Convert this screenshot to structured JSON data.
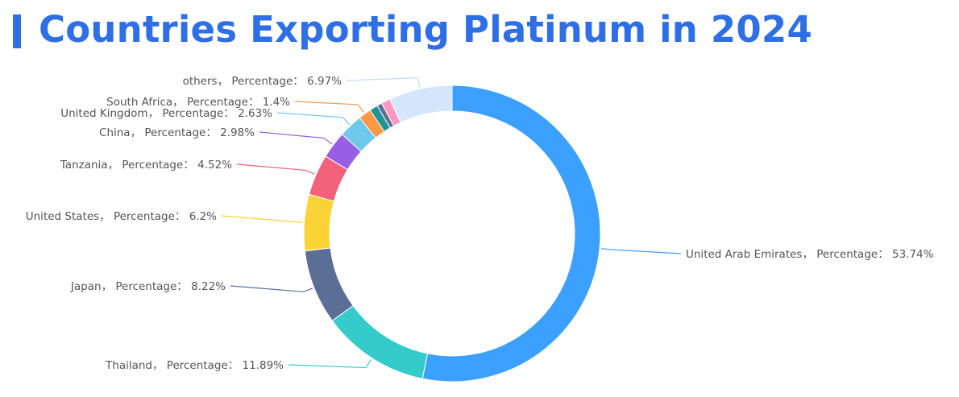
{
  "chart_data": {
    "type": "pie",
    "variant": "donut",
    "title": "Countries Exporting Platinum in 2024",
    "label_field": "Percentage",
    "unit": "%",
    "slices": [
      {
        "name": "United Arab Emirates",
        "value": 53.74,
        "color": "#3ba0ff"
      },
      {
        "name": "Thailand",
        "value": 11.89,
        "color": "#36cbcb"
      },
      {
        "name": "Japan",
        "value": 8.22,
        "color": "#5b6e96"
      },
      {
        "name": "United States",
        "value": 6.2,
        "color": "#fad337"
      },
      {
        "name": "Tanzania",
        "value": 4.52,
        "color": "#f2637b"
      },
      {
        "name": "China",
        "value": 2.98,
        "color": "#975fe4"
      },
      {
        "name": "United Kingdom",
        "value": 2.63,
        "color": "#6dc8ec"
      },
      {
        "name": "South Africa",
        "value": 1.4,
        "color": "#ff9845"
      },
      {
        "name": "",
        "value": 0.9,
        "color": "#1e9493"
      },
      {
        "name": "",
        "value": 0.55,
        "color": "#5d7092"
      },
      {
        "name": "",
        "value": 1.0,
        "color": "#ff99c3"
      },
      {
        "name": "others",
        "value": 6.97,
        "color": "#d3e6fb"
      }
    ]
  }
}
